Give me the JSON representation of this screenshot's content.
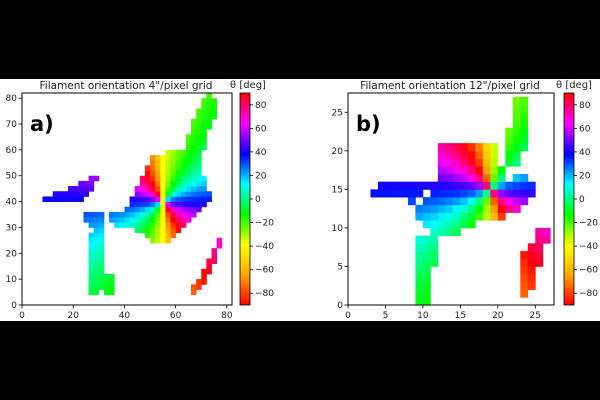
{
  "chart_data": [
    {
      "type": "heatmap",
      "panel_label": "a)",
      "title": "Filament orientation 4\"/pixel grid",
      "colorbar_label": "θ [deg]",
      "colorbar_ticks": [
        -80,
        -60,
        -40,
        -20,
        0,
        20,
        40,
        60,
        80
      ],
      "colorbar_range": [
        -90,
        90
      ],
      "colormap": [
        "#ff0000",
        "#ffa500",
        "#ffff00",
        "#00ff00",
        "#00ffff",
        "#0000ff",
        "#ff00ff",
        "#ff0000"
      ],
      "xlim": [
        0,
        82
      ],
      "ylim": [
        0,
        82
      ],
      "xticks": [
        0,
        20,
        40,
        60,
        80
      ],
      "yticks": [
        0,
        10,
        20,
        30,
        40,
        50,
        60,
        70,
        80
      ],
      "grid": false,
      "grid_resolution": 1,
      "map_description": "orientation angle field along filaments; central hub near (55,40) with radial pattern",
      "regions": [
        {
          "name": "left arm",
          "polygon": [
            [
              8,
              42
            ],
            [
              12,
              43
            ],
            [
              20,
              46
            ],
            [
              26,
              49
            ],
            [
              30,
              50
            ],
            [
              27,
              43
            ],
            [
              22,
              40
            ],
            [
              16,
              40
            ],
            [
              9,
              40
            ]
          ]
        },
        {
          "name": "central hub",
          "polygon": [
            [
              40,
              36
            ],
            [
              45,
              46
            ],
            [
              50,
              57
            ],
            [
              58,
              60
            ],
            [
              65,
              59
            ],
            [
              66,
              56
            ],
            [
              70,
              55
            ],
            [
              72,
              45
            ],
            [
              75,
              41
            ],
            [
              71,
              37
            ],
            [
              67,
              33
            ],
            [
              63,
              29
            ],
            [
              60,
              26
            ],
            [
              56,
              24
            ],
            [
              50,
              25
            ],
            [
              46,
              28
            ],
            [
              42,
              31
            ],
            [
              36,
              30
            ],
            [
              33,
              36
            ],
            [
              30,
              33
            ],
            [
              28,
              30
            ],
            [
              25,
              32
            ],
            [
              22,
              37
            ]
          ]
        },
        {
          "name": "upper arm",
          "polygon": [
            [
              63,
              59
            ],
            [
              66,
              70
            ],
            [
              70,
              78
            ],
            [
              74,
              82
            ],
            [
              77,
              78
            ],
            [
              72,
              65
            ],
            [
              70,
              56
            ],
            [
              64,
              57
            ]
          ]
        },
        {
          "name": "bottom-left blob",
          "polygon": [
            [
              27,
              28
            ],
            [
              30,
              35
            ],
            [
              33,
              30
            ],
            [
              33,
              18
            ],
            [
              33,
              10
            ],
            [
              30,
              4
            ],
            [
              27,
              3
            ],
            [
              26,
              10
            ],
            [
              27,
              20
            ]
          ]
        },
        {
          "name": "bottom blob",
          "polygon": [
            [
              32,
              10
            ],
            [
              33,
              13
            ],
            [
              37,
              12
            ],
            [
              37,
              5
            ],
            [
              34,
              4
            ],
            [
              32,
              5
            ]
          ]
        },
        {
          "name": "lower right arm",
          "polygon": [
            [
              70,
              10
            ],
            [
              72,
              16
            ],
            [
              75,
              22
            ],
            [
              77,
              27
            ],
            [
              78,
              24
            ],
            [
              76,
              18
            ],
            [
              73,
              12
            ],
            [
              68,
              4
            ],
            [
              66,
              6
            ],
            [
              68,
              9
            ]
          ]
        }
      ]
    },
    {
      "type": "heatmap",
      "panel_label": "b)",
      "title": "Filament orientation 12\"/pixel grid",
      "colorbar_label": "θ [deg]",
      "colorbar_ticks": [
        -80,
        -60,
        -40,
        -20,
        0,
        20,
        40,
        60,
        80
      ],
      "colorbar_range": [
        -90,
        90
      ],
      "colormap": [
        "#ff0000",
        "#ffa500",
        "#ffff00",
        "#00ff00",
        "#00ffff",
        "#0000ff",
        "#ff00ff",
        "#ff0000"
      ],
      "xlim": [
        0,
        27.5
      ],
      "ylim": [
        0,
        27.5
      ],
      "xticks": [
        0,
        5,
        10,
        15,
        20,
        25
      ],
      "yticks": [
        0,
        5,
        10,
        15,
        20,
        25
      ],
      "grid": false,
      "grid_resolution": 1,
      "map_description": "same field rebinned; central hub near (19,15)",
      "regions": [
        {
          "name": "upper arm",
          "polygon": [
            [
              21,
              21
            ],
            [
              22,
              25
            ],
            [
              22,
              27
            ],
            [
              24,
              27
            ],
            [
              24,
              22
            ],
            [
              23,
              18
            ],
            [
              21,
              18
            ]
          ]
        },
        {
          "name": "central region",
          "polygon": [
            [
              12,
              21
            ],
            [
              20,
              21
            ],
            [
              21,
              16
            ],
            [
              24,
              17
            ],
            [
              26,
              15
            ],
            [
              24,
              13
            ],
            [
              22,
              12
            ],
            [
              20,
              11
            ],
            [
              18,
              11
            ],
            [
              16,
              10
            ],
            [
              14,
              9
            ],
            [
              12,
              9
            ],
            [
              10,
              10
            ],
            [
              9,
              12
            ],
            [
              11,
              14
            ],
            [
              12,
              15
            ],
            [
              10,
              16
            ],
            [
              7,
              16
            ],
            [
              5,
              16
            ],
            [
              3,
              15
            ],
            [
              3,
              14
            ],
            [
              7,
              14
            ],
            [
              9,
              13
            ],
            [
              12,
              17
            ]
          ]
        },
        {
          "name": "lower left arm",
          "polygon": [
            [
              9,
              9
            ],
            [
              9,
              4
            ],
            [
              9,
              0
            ],
            [
              11,
              0
            ],
            [
              11,
              3
            ],
            [
              12,
              6
            ],
            [
              12,
              9
            ]
          ]
        },
        {
          "name": "lower right arm",
          "polygon": [
            [
              23,
              1
            ],
            [
              23,
              6
            ],
            [
              25,
              9
            ],
            [
              26,
              10
            ],
            [
              27,
              10
            ],
            [
              26,
              6
            ],
            [
              25,
              3
            ],
            [
              24,
              1
            ]
          ]
        }
      ]
    }
  ]
}
